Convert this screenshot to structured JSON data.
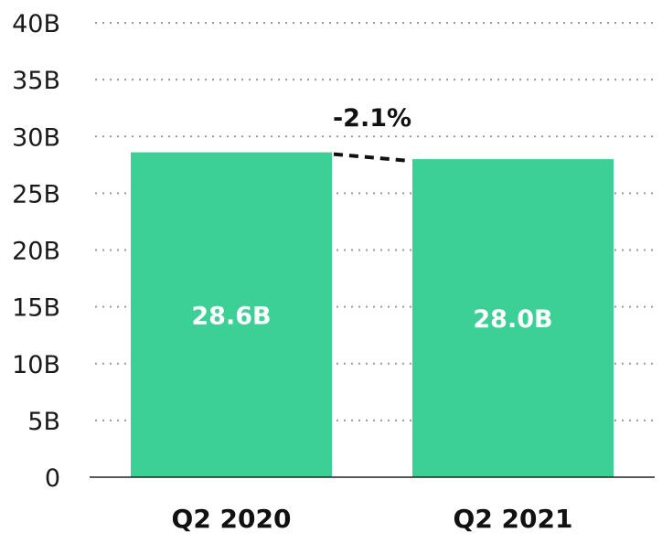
{
  "chart_data": {
    "type": "bar",
    "categories": [
      "Q2 2020",
      "Q2 2021"
    ],
    "values": [
      28.6,
      28.0
    ],
    "value_labels": [
      "28.6B",
      "28.0B"
    ],
    "change_label": "-2.1%",
    "yticks": [
      0,
      5,
      10,
      15,
      20,
      25,
      30,
      35,
      40
    ],
    "ytick_labels": [
      "0",
      "5B",
      "10B",
      "15B",
      "20B",
      "25B",
      "30B",
      "35B",
      "40B"
    ],
    "ylim": [
      0,
      40
    ],
    "grid": true,
    "bar_color": "#3ccf96",
    "title": "",
    "xlabel": "",
    "ylabel": ""
  }
}
